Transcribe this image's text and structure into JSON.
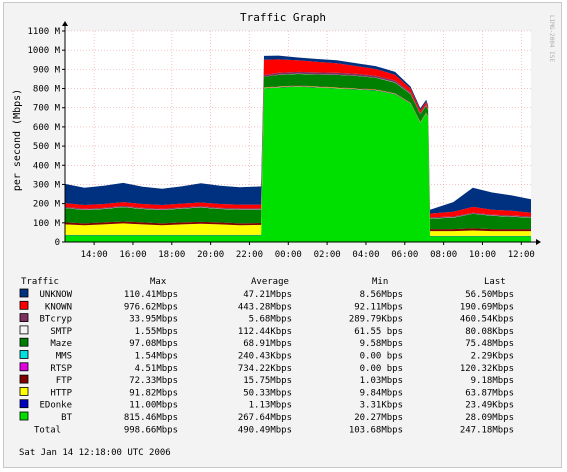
{
  "chart_data": {
    "type": "area",
    "stacked": true,
    "title": "Traffic Graph",
    "ylabel": "per second (Mbps)",
    "watermark": "LIMG-2004 ISE",
    "ylim": [
      0,
      1100
    ],
    "y_ticks": [
      0,
      100,
      200,
      300,
      400,
      500,
      600,
      700,
      800,
      900,
      1000,
      1100
    ],
    "y_tick_labels": [
      "0",
      "100 M",
      "200 M",
      "300 M",
      "400 M",
      "500 M",
      "600 M",
      "700 M",
      "800 M",
      "900 M",
      "1000 M",
      "1100 M"
    ],
    "xlim": [
      12.5,
      36.5
    ],
    "x_ticks": [
      14,
      16,
      18,
      20,
      22,
      24,
      26,
      28,
      30,
      32,
      34,
      36
    ],
    "x_tick_labels": [
      "14:00",
      "16:00",
      "18:00",
      "20:00",
      "22:00",
      "00:00",
      "02:00",
      "04:00",
      "06:00",
      "08:00",
      "10:00",
      "12:00"
    ],
    "grid": true,
    "x": [
      12.5,
      13.5,
      14.5,
      15.5,
      16.5,
      17.5,
      18.5,
      19.5,
      20.5,
      21.5,
      22.6,
      22.75,
      23.5,
      24.5,
      25.5,
      26.5,
      27.5,
      28.5,
      29.5,
      30.3,
      30.8,
      31.1,
      31.2,
      31.3,
      32.5,
      33.5,
      34.5,
      35.5,
      36.5
    ],
    "series": [
      {
        "name": "BT",
        "color": "#00e000",
        "values": [
          35,
          35,
          35,
          35,
          35,
          35,
          35,
          35,
          35,
          35,
          35,
          800,
          805,
          810,
          805,
          800,
          795,
          790,
          770,
          720,
          620,
          670,
          650,
          30,
          30,
          30,
          30,
          30,
          30
        ]
      },
      {
        "name": "EDonke",
        "color": "#0000c0",
        "values": [
          2,
          2,
          2,
          2,
          2,
          2,
          2,
          2,
          2,
          2,
          2,
          2,
          2,
          2,
          2,
          2,
          2,
          2,
          2,
          2,
          2,
          2,
          2,
          2,
          2,
          2,
          2,
          2,
          2
        ]
      },
      {
        "name": "HTTP",
        "color": "#ffff00",
        "values": [
          55,
          50,
          55,
          60,
          55,
          50,
          55,
          58,
          55,
          50,
          52,
          2,
          2,
          2,
          2,
          2,
          2,
          2,
          2,
          2,
          2,
          2,
          2,
          25,
          25,
          28,
          25,
          25,
          25
        ]
      },
      {
        "name": "FTP",
        "color": "#800000",
        "values": [
          10,
          10,
          10,
          10,
          10,
          10,
          10,
          10,
          10,
          10,
          10,
          2,
          2,
          2,
          2,
          2,
          2,
          2,
          2,
          2,
          2,
          2,
          2,
          10,
          10,
          12,
          10,
          10,
          10
        ]
      },
      {
        "name": "RTSP",
        "color": "#e000e0",
        "values": [
          0,
          0,
          0,
          0,
          0,
          0,
          0,
          0,
          0,
          0,
          0,
          0,
          0,
          0,
          0,
          0,
          0,
          0,
          0,
          0,
          0,
          0,
          0,
          0,
          0,
          0,
          0,
          0,
          0
        ]
      },
      {
        "name": "MMS",
        "color": "#00e0e0",
        "values": [
          0,
          0,
          0,
          0,
          0,
          0,
          0,
          0,
          0,
          0,
          0,
          0,
          0,
          0,
          0,
          0,
          0,
          0,
          0,
          0,
          0,
          0,
          0,
          0,
          0,
          0,
          0,
          0,
          0
        ]
      },
      {
        "name": "Maze",
        "color": "#008000",
        "values": [
          75,
          70,
          70,
          75,
          70,
          70,
          72,
          75,
          70,
          72,
          70,
          55,
          60,
          60,
          62,
          65,
          65,
          60,
          55,
          45,
          40,
          35,
          30,
          55,
          60,
          75,
          70,
          65,
          60
        ]
      },
      {
        "name": "SMTP",
        "color": "#f4f4f4",
        "values": [
          1,
          1,
          1,
          1,
          1,
          1,
          1,
          1,
          1,
          1,
          1,
          1,
          1,
          1,
          1,
          1,
          1,
          1,
          1,
          1,
          1,
          1,
          1,
          1,
          1,
          1,
          1,
          1,
          1
        ]
      },
      {
        "name": "BTcryp",
        "color": "#803060",
        "values": [
          5,
          5,
          5,
          5,
          5,
          5,
          5,
          5,
          5,
          5,
          5,
          8,
          10,
          10,
          10,
          10,
          10,
          10,
          10,
          8,
          5,
          5,
          5,
          5,
          5,
          5,
          5,
          5,
          5
        ]
      },
      {
        "name": "KNOWN",
        "color": "#ff0000",
        "values": [
          20,
          20,
          20,
          20,
          20,
          20,
          20,
          20,
          20,
          20,
          20,
          80,
          70,
          60,
          55,
          50,
          40,
          35,
          30,
          20,
          15,
          15,
          10,
          20,
          25,
          30,
          25,
          25,
          20
        ]
      },
      {
        "name": "UNKNOW",
        "color": "#003080",
        "values": [
          100,
          90,
          95,
          100,
          90,
          85,
          90,
          100,
          95,
          90,
          95,
          20,
          20,
          15,
          15,
          15,
          15,
          15,
          15,
          10,
          10,
          10,
          10,
          20,
          50,
          100,
          90,
          80,
          70
        ]
      }
    ],
    "legend": {
      "headers": [
        "Traffic",
        "Max",
        "Average",
        "Min",
        "Last"
      ],
      "rows": [
        {
          "name": "UNKNOW",
          "color": "#003080",
          "max": "110.41Mbps",
          "avg": "47.21Mbps",
          "min": "8.56Mbps",
          "last": "56.50Mbps"
        },
        {
          "name": "KNOWN",
          "color": "#ff0000",
          "max": "976.62Mbps",
          "avg": "443.28Mbps",
          "min": "92.11Mbps",
          "last": "190.69Mbps"
        },
        {
          "name": "BTcryp",
          "color": "#803060",
          "max": "33.95Mbps",
          "avg": "5.68Mbps",
          "min": "289.79Kbps",
          "last": "460.54Kbps"
        },
        {
          "name": "SMTP",
          "color": "#f4f4f4",
          "max": "1.55Mbps",
          "avg": "112.44Kbps",
          "min": "61.55 bps",
          "last": "80.08Kbps"
        },
        {
          "name": "Maze",
          "color": "#008000",
          "max": "97.08Mbps",
          "avg": "68.91Mbps",
          "min": "9.58Mbps",
          "last": "75.48Mbps"
        },
        {
          "name": "MMS",
          "color": "#00e0e0",
          "max": "1.54Mbps",
          "avg": "240.43Kbps",
          "min": "0.00 bps",
          "last": "2.29Kbps"
        },
        {
          "name": "RTSP",
          "color": "#e000e0",
          "max": "4.51Mbps",
          "avg": "734.22Kbps",
          "min": "0.00 bps",
          "last": "120.32Kbps"
        },
        {
          "name": "FTP",
          "color": "#800000",
          "max": "72.33Mbps",
          "avg": "15.75Mbps",
          "min": "1.03Mbps",
          "last": "9.18Mbps"
        },
        {
          "name": "HTTP",
          "color": "#ffff00",
          "max": "91.82Mbps",
          "avg": "50.33Mbps",
          "min": "9.84Mbps",
          "last": "63.87Mbps"
        },
        {
          "name": "EDonke",
          "color": "#0000c0",
          "max": "11.00Mbps",
          "avg": "1.13Mbps",
          "min": "3.31Kbps",
          "last": "23.49Kbps"
        },
        {
          "name": "BT",
          "color": "#00e000",
          "max": "815.46Mbps",
          "avg": "267.64Mbps",
          "min": "20.27Mbps",
          "last": "28.09Mbps"
        }
      ],
      "total": {
        "name": "Total",
        "max": "998.66Mbps",
        "avg": "490.49Mbps",
        "min": "103.68Mbps",
        "last": "247.18Mbps"
      }
    },
    "timestamp": "Sat Jan 14 12:18:00 UTC 2006"
  }
}
